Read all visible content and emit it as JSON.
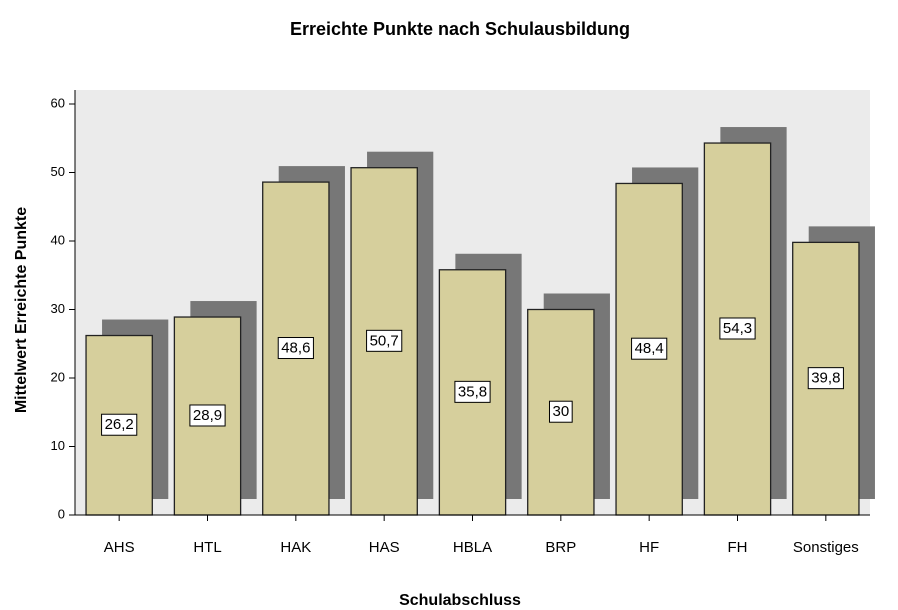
{
  "chart_data": {
    "type": "bar",
    "title": "Erreichte Punkte nach Schulausbildung",
    "x_label": "Schulabschluss",
    "y_label": "Mittelwert Erreichte Punkte",
    "categories": [
      "AHS",
      "HTL",
      "HAK",
      "HAS",
      "HBLA",
      "BRP",
      "HF",
      "FH",
      "Sonstiges"
    ],
    "values": [
      26.2,
      28.9,
      48.6,
      50.7,
      35.8,
      30,
      48.4,
      54.3,
      39.8
    ],
    "value_labels": [
      "26,2",
      "28,9",
      "48,6",
      "50,7",
      "35,8",
      "30",
      "48,4",
      "54,3",
      "39,8"
    ],
    "color": "#d6cf9c",
    "shadow_color": "#777777",
    "ylim": [
      0,
      60
    ],
    "yticks": [
      0,
      10,
      20,
      30,
      40,
      50,
      60
    ]
  }
}
